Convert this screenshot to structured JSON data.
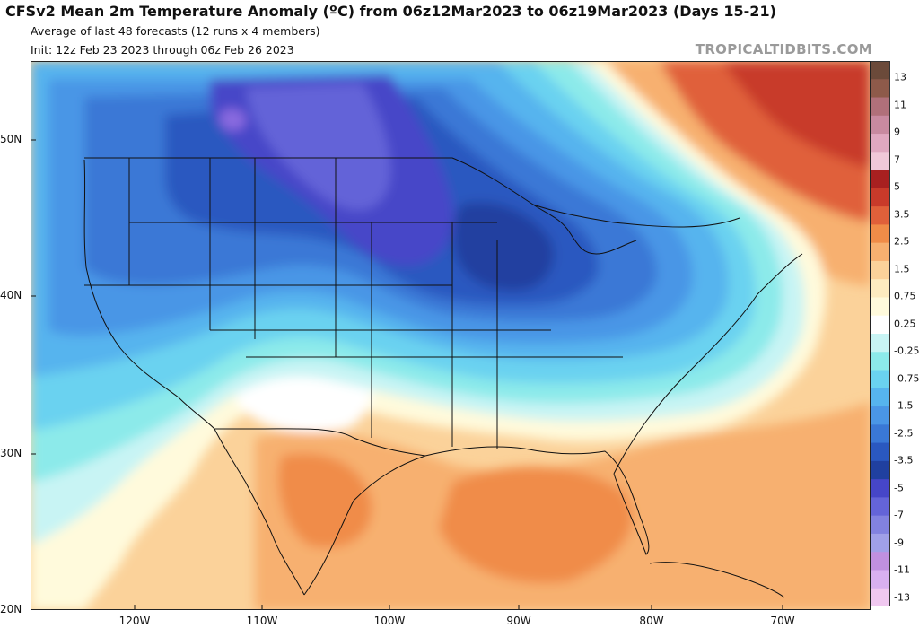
{
  "header": {
    "title": "CFSv2 Mean 2m Temperature Anomaly (ºC) from 06z12Mar2023 to 06z19Mar2023 (Days 15-21)",
    "subtitle1": "Average of last 48 forecasts (12 runs x 4 members)",
    "subtitle2": "Init: 12z Feb 23 2023 through 06z Feb 26 2023",
    "brand": "TROPICALTIDBITS.COM"
  },
  "axes": {
    "lat_labels": [
      "50N",
      "40N",
      "30N",
      "20N"
    ],
    "lon_labels": [
      "120W",
      "110W",
      "100W",
      "90W",
      "80W",
      "70W"
    ]
  },
  "colorbar": {
    "labels": [
      "13",
      "11",
      "9",
      "7",
      "5",
      "3.5",
      "2.5",
      "1.5",
      "0.75",
      "0.25",
      "-0.25",
      "-0.75",
      "-1.5",
      "-2.5",
      "-3.5",
      "-5",
      "-7",
      "-9",
      "-11",
      "-13"
    ],
    "colors": [
      "#6b4a3a",
      "#8e5a4a",
      "#b0707a",
      "#c88aa0",
      "#e0a8c0",
      "#f0c8d8",
      "#a82020",
      "#c83a2a",
      "#e0603a",
      "#f08c48",
      "#f7b070",
      "#fbd29a",
      "#fdebc0",
      "#fffadc",
      "#ffffff",
      "#c8f4f4",
      "#8ceaea",
      "#6ad2f0",
      "#56b4ee",
      "#4a96e6",
      "#3a78d6",
      "#2a58c0",
      "#2040a0",
      "#4646c8",
      "#6464d8",
      "#8282e0",
      "#a0a0e8",
      "#c090e0",
      "#d8b0f0",
      "#f0c8f0"
    ]
  },
  "map_colors": {
    "bg": "#fbd29a",
    "warm1": "#f7b070",
    "warm2": "#f08c48",
    "hot1": "#e0603a",
    "hot2": "#c83a2a",
    "pale": "#fffadc",
    "white": "#ffffff",
    "cy1": "#c8f4f4",
    "cy2": "#8ceaea",
    "bl1": "#6ad2f0",
    "bl2": "#56b4ee",
    "bl3": "#4a96e6",
    "bl4": "#3a78d6",
    "bl5": "#2a58c0",
    "bl6": "#2040a0",
    "vi1": "#4646c8",
    "vi2": "#6464d8",
    "vi3": "#8a6ae0"
  }
}
